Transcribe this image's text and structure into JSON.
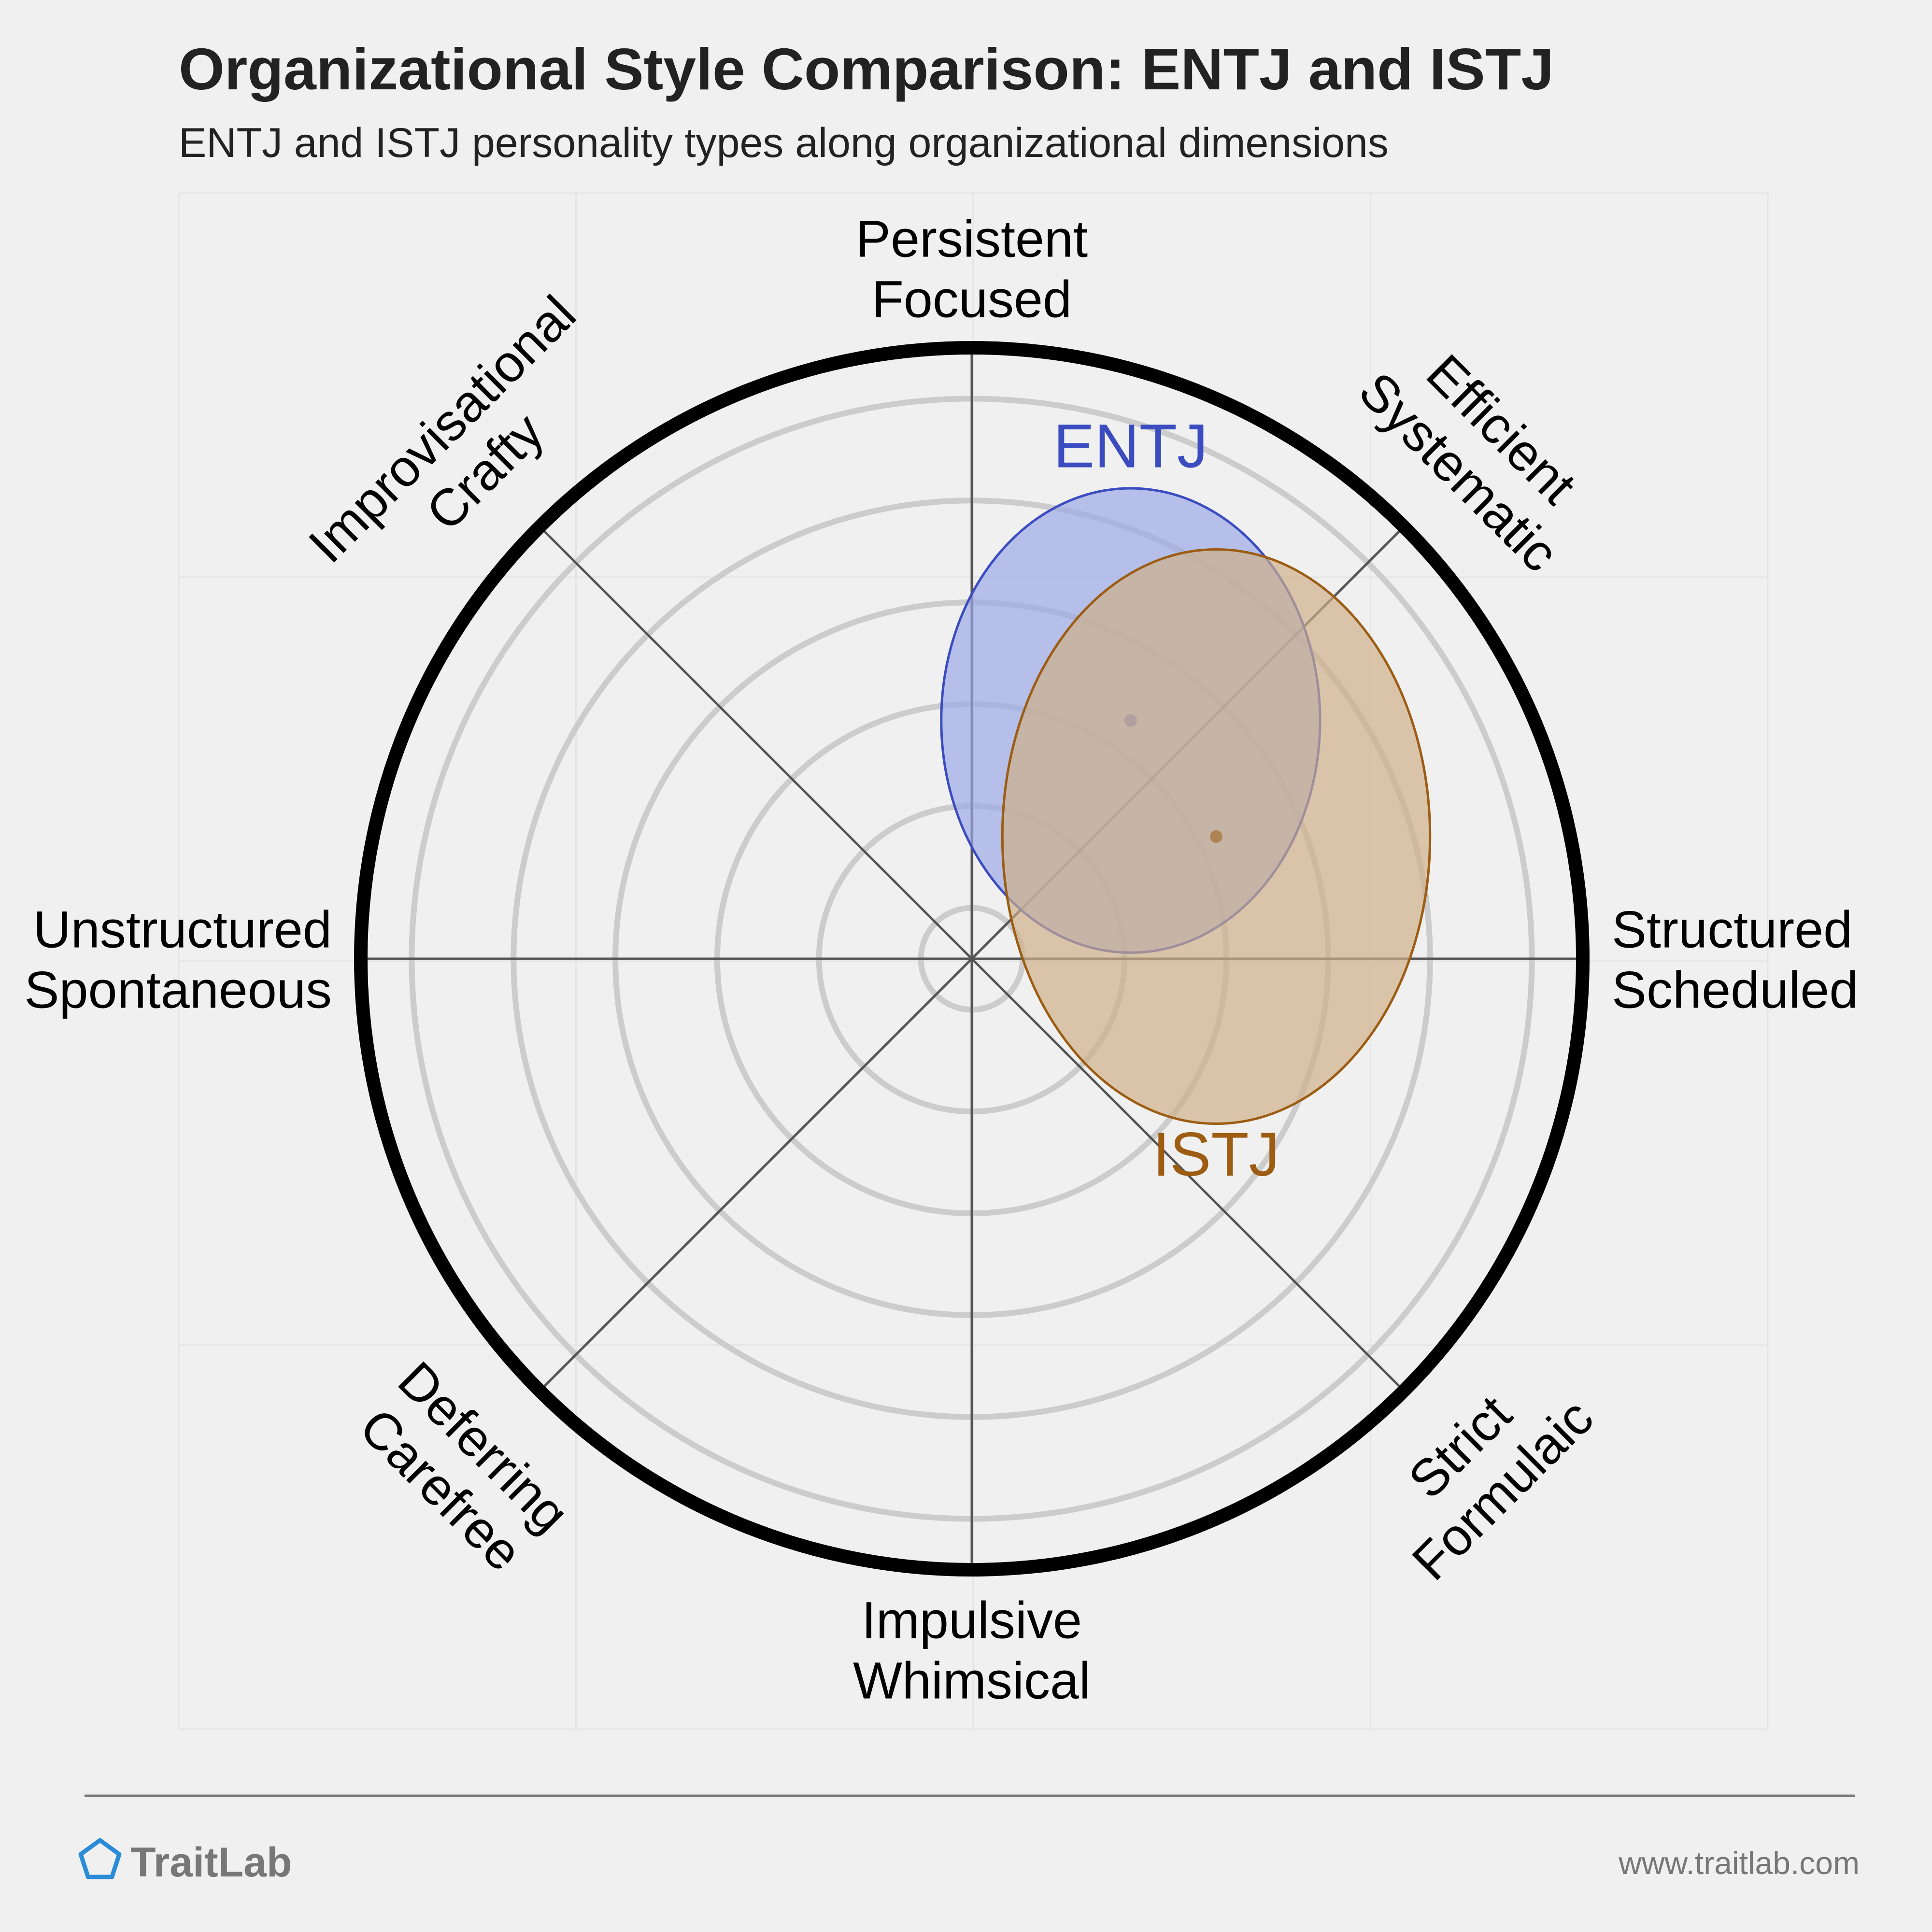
{
  "header": {
    "title": "Organizational Style Comparison: ENTJ and ISTJ",
    "subtitle": "ENTJ and ISTJ personality types along organizational dimensions"
  },
  "chart_data": {
    "type": "scatter",
    "chart_kind": "polar ellipse comparison",
    "axes": [
      {
        "name": "north",
        "angle_deg": 90,
        "label": [
          "Persistent",
          "Focused"
        ]
      },
      {
        "name": "northeast",
        "angle_deg": 45,
        "label": [
          "Efficient",
          "Systematic"
        ]
      },
      {
        "name": "east",
        "angle_deg": 0,
        "label": [
          "Structured",
          "Scheduled"
        ]
      },
      {
        "name": "southeast",
        "angle_deg": -45,
        "label": [
          "Strict",
          "Formulaic"
        ]
      },
      {
        "name": "south",
        "angle_deg": -90,
        "label": [
          "Impulsive",
          "Whimsical"
        ]
      },
      {
        "name": "southwest",
        "angle_deg": -135,
        "label": [
          "Deferring",
          "Carefree"
        ]
      },
      {
        "name": "west",
        "angle_deg": 180,
        "label": [
          "Unstructured",
          "Spontaneous"
        ]
      },
      {
        "name": "northwest",
        "angle_deg": 135,
        "label": [
          "Improvisational",
          "Crafty"
        ]
      }
    ],
    "rings": 6,
    "radius_max": 1,
    "grid": true,
    "series": [
      {
        "name": "ENTJ",
        "color": "#3b4cc0",
        "fill": "#99a8e8",
        "cx": 0.26,
        "cy": 0.39,
        "rx": 0.31,
        "ry": 0.38
      },
      {
        "name": "ISTJ",
        "color": "#9c5c12",
        "fill": "#cfaf88",
        "cx": 0.4,
        "cy": 0.2,
        "rx": 0.35,
        "ry": 0.47
      }
    ]
  },
  "footer": {
    "brand": "TraitLab",
    "url": "www.traitlab.com",
    "logo_icon": "pentagon-logo-icon",
    "logo_color": "#2a8bd6"
  }
}
